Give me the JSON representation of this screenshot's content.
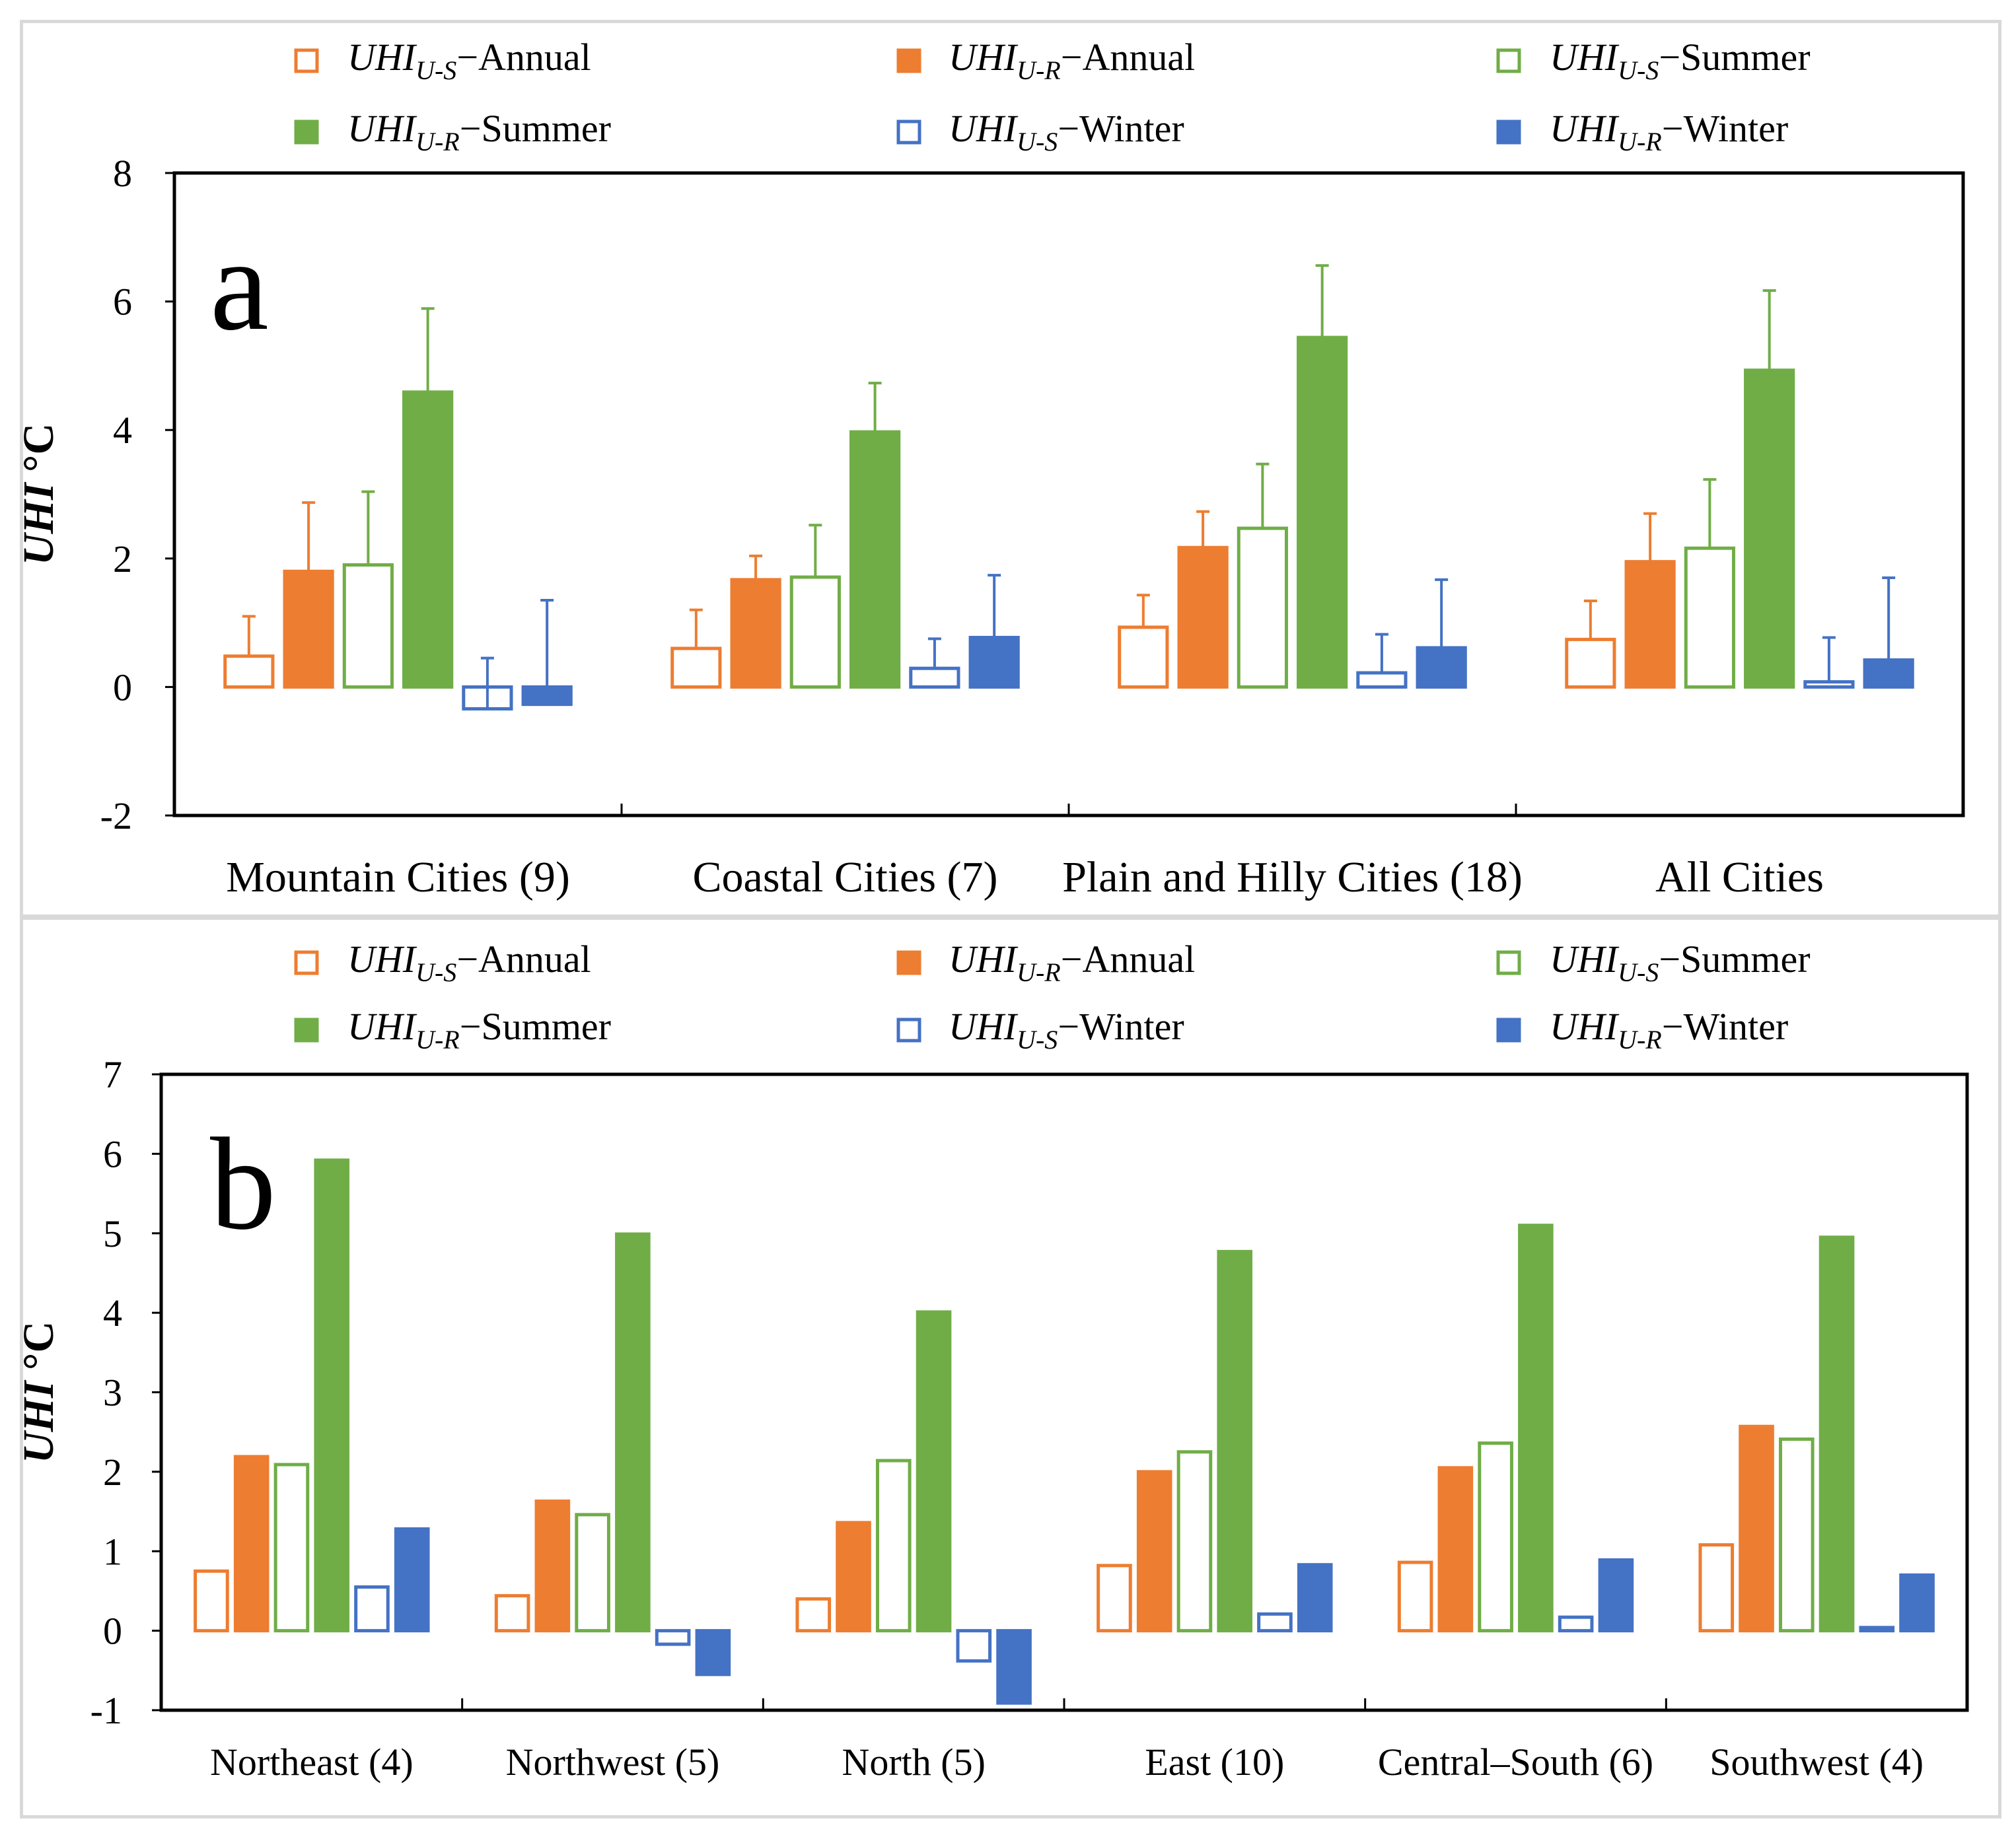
{
  "legend": [
    {
      "base": "UHI",
      "sub": "U-S",
      "suffix": "−Annual",
      "color": "#ED7D31",
      "filled": false
    },
    {
      "base": "UHI",
      "sub": "U-R",
      "suffix": "−Annual",
      "color": "#ED7D31",
      "filled": true
    },
    {
      "base": "UHI",
      "sub": "U-S",
      "suffix": "−Summer",
      "color": "#70AD47",
      "filled": false
    },
    {
      "base": "UHI",
      "sub": "U-R",
      "suffix": "−Summer",
      "color": "#70AD47",
      "filled": true
    },
    {
      "base": "UHI",
      "sub": "U-S",
      "suffix": "−Winter",
      "color": "#4472C4",
      "filled": false
    },
    {
      "base": "UHI",
      "sub": "U-R",
      "suffix": "−Winter",
      "color": "#4472C4",
      "filled": true
    }
  ],
  "chart_data": [
    {
      "panel_label": "a",
      "type": "bar",
      "ylabel": "UHI °C",
      "ylabel_italic_part": "UHI",
      "ylabel_unit": " °C",
      "ylim": [
        -2,
        8
      ],
      "yticks": [
        -2,
        0,
        2,
        4,
        6,
        8
      ],
      "categories": [
        "Mountain Cities (9)",
        "Coastal Cities (7)",
        "Plain and Hilly Cities (18)",
        "All Cities"
      ],
      "series": [
        {
          "name": "UHI U-S Annual",
          "values": [
            0.48,
            0.6,
            0.93,
            0.74
          ],
          "errors": [
            0.62,
            0.6,
            0.5,
            0.6
          ]
        },
        {
          "name": "UHI U-R Annual",
          "values": [
            1.8,
            1.67,
            2.17,
            1.95
          ],
          "errors": [
            1.07,
            0.37,
            0.56,
            0.75
          ]
        },
        {
          "name": "UHI U-S Summer",
          "values": [
            1.9,
            1.71,
            2.47,
            2.16
          ],
          "errors": [
            1.14,
            0.81,
            1.0,
            1.07
          ]
        },
        {
          "name": "UHI U-R Summer",
          "values": [
            4.59,
            3.97,
            5.44,
            4.93
          ],
          "errors": [
            1.3,
            0.76,
            1.12,
            1.24
          ]
        },
        {
          "name": "UHI U-S Winter",
          "values": [
            -0.34,
            0.29,
            0.22,
            0.08
          ],
          "errors": [
            0.79,
            0.46,
            0.6,
            0.69
          ]
        },
        {
          "name": "UHI U-R Winter",
          "values": [
            -0.27,
            0.77,
            0.61,
            0.42
          ],
          "errors": [
            1.62,
            0.97,
            1.06,
            1.28
          ]
        }
      ]
    },
    {
      "panel_label": "b",
      "type": "bar",
      "ylabel": "UHI °C",
      "ylabel_italic_part": "UHI",
      "ylabel_unit": " °C",
      "ylim": [
        -1,
        7
      ],
      "yticks": [
        -1,
        0,
        1,
        2,
        3,
        4,
        5,
        6,
        7
      ],
      "categories": [
        "Northeast (4)",
        "Northwest (5)",
        "North (5)",
        "East (10)",
        "Central–South  (6)",
        "Southwest (4)"
      ],
      "series": [
        {
          "name": "UHI U-S Annual",
          "values": [
            0.75,
            0.44,
            0.4,
            0.82,
            0.86,
            1.08
          ]
        },
        {
          "name": "UHI U-R Annual",
          "values": [
            2.19,
            1.63,
            1.36,
            2.0,
            2.05,
            2.57
          ]
        },
        {
          "name": "UHI U-S Summer",
          "values": [
            2.09,
            1.46,
            2.14,
            2.25,
            2.36,
            2.41
          ]
        },
        {
          "name": "UHI U-R Summer",
          "values": [
            5.92,
            4.99,
            4.01,
            4.77,
            5.1,
            4.95
          ]
        },
        {
          "name": "UHI U-S Winter",
          "values": [
            0.55,
            -0.17,
            -0.38,
            0.21,
            0.17,
            0.04
          ]
        },
        {
          "name": "UHI U-R Winter",
          "values": [
            1.28,
            -0.55,
            -0.91,
            0.83,
            0.89,
            0.7
          ]
        }
      ]
    }
  ]
}
